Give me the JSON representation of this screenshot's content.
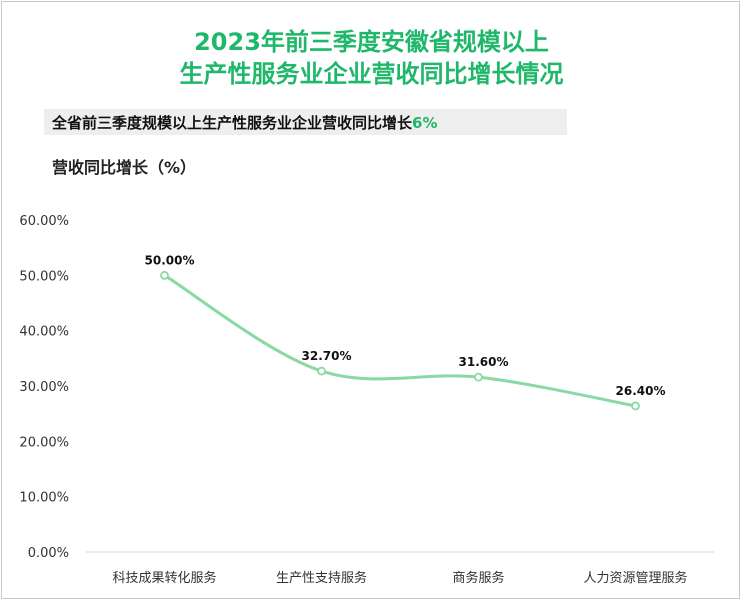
{
  "header": {
    "title_line1": "2023年前三季度安徽省规模以上",
    "title_line2": "生产性服务业企业营收同比增长情况",
    "subtitle_text": "全省前三季度规模以上生产性服务业企业营收同比增长",
    "subtitle_value": "6%"
  },
  "colors": {
    "accent": "#1fb76a",
    "line": "#8ad9a4",
    "subtitle_bg": "#eeeeee"
  },
  "chart_data": {
    "type": "line",
    "title": "2023年前三季度安徽省规模以上生产性服务业企业营收同比增长情况",
    "ylabel": "营收同比增长（%）",
    "xlabel": "",
    "categories": [
      "科技成果转化服务",
      "生产性支持服务",
      "商务服务",
      "人力资源管理服务"
    ],
    "series": [
      {
        "name": "营收同比增长",
        "values": [
          50.0,
          32.7,
          31.6,
          26.4
        ],
        "labels": [
          "50.00%",
          "32.70%",
          "31.60%",
          "26.40%"
        ]
      }
    ],
    "ylim": [
      0,
      60
    ],
    "yticks": [
      0,
      10,
      20,
      30,
      40,
      50,
      60
    ],
    "ytick_labels": [
      "0.00%",
      "10.00%",
      "20.00%",
      "30.00%",
      "40.00%",
      "50.00%",
      "60.00%"
    ],
    "grid": false,
    "smooth": true
  }
}
